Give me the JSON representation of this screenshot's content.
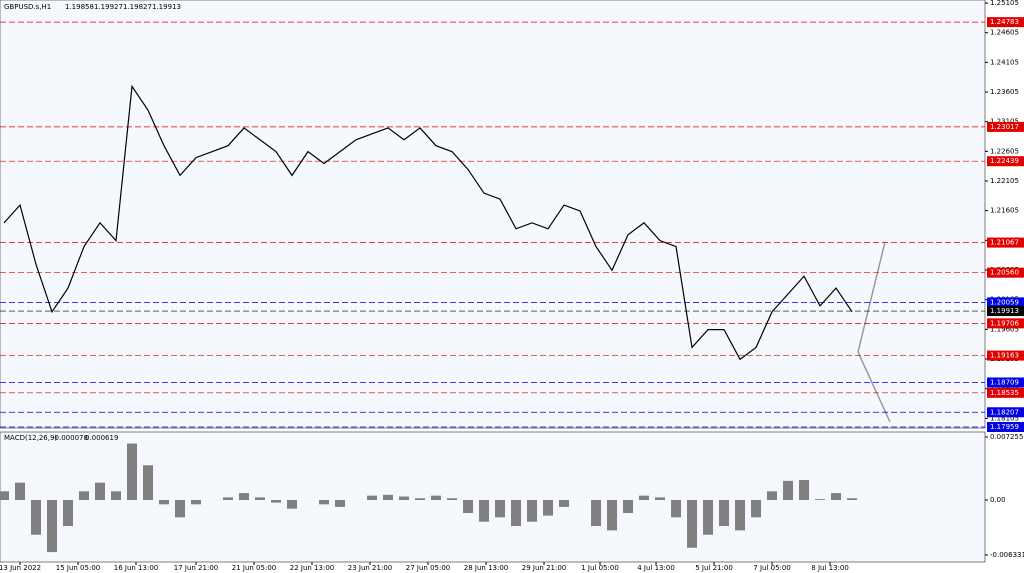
{
  "chart_data": [
    {
      "type": "line",
      "title": "GBPUSD.s,H1",
      "ohlc": [
        1.19858,
        1.19927,
        1.19827,
        1.19913
      ],
      "x": [
        0,
        1,
        2,
        3,
        4,
        5,
        6,
        7,
        8,
        9,
        10,
        11,
        12,
        13,
        14,
        15,
        16,
        17,
        18,
        19,
        20,
        21,
        22,
        23,
        24,
        25,
        26,
        27,
        28,
        29,
        30,
        31,
        32,
        33,
        34,
        35,
        36,
        37,
        38,
        39,
        40,
        41,
        42,
        43,
        44,
        45,
        46,
        47,
        48,
        49,
        50,
        51,
        52,
        53
      ],
      "values": [
        1.214,
        1.217,
        1.207,
        1.199,
        1.203,
        1.21,
        1.214,
        1.211,
        1.237,
        1.233,
        1.227,
        1.222,
        1.225,
        1.226,
        1.227,
        1.23,
        1.228,
        1.226,
        1.222,
        1.226,
        1.224,
        1.226,
        1.228,
        1.229,
        1.23,
        1.228,
        1.23,
        1.227,
        1.226,
        1.223,
        1.219,
        1.218,
        1.213,
        1.214,
        1.213,
        1.217,
        1.216,
        1.21,
        1.206,
        1.212,
        1.214,
        1.211,
        1.21,
        1.193,
        1.196,
        1.196,
        1.191,
        1.193,
        1.199,
        1.202,
        1.205,
        1.2,
        1.203,
        1.199
      ],
      "color": "#000000",
      "xlim": [
        -0.25,
        61.31
      ],
      "xticks": [
        {
          "value": 1,
          "label": "13 Jun 2022"
        },
        {
          "value": 4.625,
          "label": "15 Jun 05:00"
        },
        {
          "value": 8.25,
          "label": "16 Jun 13:00"
        },
        {
          "value": 12,
          "label": "17 Jun 21:00"
        },
        {
          "value": 15.625,
          "label": "21 Jun 05:00"
        },
        {
          "value": 19.25,
          "label": "22 Jun 13:00"
        },
        {
          "value": 22.875,
          "label": "23 Jun 21:00"
        },
        {
          "value": 26.5,
          "label": "27 Jun 05:00"
        },
        {
          "value": 30.125,
          "label": "28 Jun 13:00"
        },
        {
          "value": 33.75,
          "label": "29 Jun 21:00"
        },
        {
          "value": 37.25,
          "label": "1 Jul 05:00"
        },
        {
          "value": 40.75,
          "label": "4 Jul 13:00"
        },
        {
          "value": 44.375,
          "label": "5 Jul 21:00"
        },
        {
          "value": 48,
          "label": "7 Jul 05:00"
        },
        {
          "value": 51.625,
          "label": "8 Jul 13:00"
        }
      ],
      "ylim": [
        1.17942,
        1.25156
      ],
      "yticks": [
        1.18105,
        1.18605,
        1.19105,
        1.19605,
        1.20105,
        1.20605,
        1.21105,
        1.21605,
        1.22105,
        1.22605,
        1.23105,
        1.23605,
        1.24105,
        1.24605,
        1.25105
      ],
      "levels": [
        {
          "value": 1.24783,
          "color": "#e00000"
        },
        {
          "value": 1.23017,
          "color": "#e00000"
        },
        {
          "value": 1.22439,
          "color": "#e00000"
        },
        {
          "value": 1.21067,
          "color": "#e00000"
        },
        {
          "value": 1.2056,
          "label": "1.20560",
          "color": "#e00000"
        },
        {
          "value": 1.20059,
          "color": "#0000e0"
        },
        {
          "value": 1.19913,
          "color": "#000000"
        },
        {
          "value": 1.19706,
          "color": "#e00000"
        },
        {
          "value": 1.19163,
          "color": "#e00000"
        },
        {
          "value": 1.18709,
          "color": "#0000e0"
        },
        {
          "value": 1.18535,
          "color": "#e00000"
        },
        {
          "value": 1.18207,
          "color": "#0000e0"
        },
        {
          "value": 1.17959,
          "color": "#0000e0"
        }
      ]
    },
    {
      "type": "bar",
      "title": "MACD(12,26,9)",
      "current": [
        -7.8e-05,
        0.000619
      ],
      "x": [
        0,
        1,
        2,
        3,
        4,
        5,
        6,
        7,
        8,
        9,
        10,
        11,
        12,
        13,
        14,
        15,
        16,
        17,
        18,
        19,
        20,
        21,
        22,
        23,
        24,
        25,
        26,
        27,
        28,
        29,
        30,
        31,
        32,
        33,
        34,
        35,
        36,
        37,
        38,
        39,
        40,
        41,
        42,
        43,
        44,
        45,
        46,
        47,
        48,
        49,
        50,
        51,
        52,
        53
      ],
      "values": [
        0.001,
        0.002,
        -0.004,
        -0.006,
        -0.003,
        0.001,
        0.002,
        0.001,
        0.0065,
        0.004,
        -0.0005,
        -0.002,
        -0.0005,
        0,
        0.0003,
        0.0008,
        0.0003,
        -0.0003,
        -0.001,
        0,
        -0.0005,
        -0.0008,
        0,
        0.0005,
        0.0006,
        0.0004,
        0.0002,
        0.0005,
        0.0002,
        -0.0015,
        -0.0025,
        -0.002,
        -0.003,
        -0.0025,
        -0.0018,
        -0.0008,
        0,
        -0.003,
        -0.0035,
        -0.0015,
        0.0005,
        0.0003,
        -0.002,
        -0.0055,
        -0.004,
        -0.003,
        -0.0035,
        -0.002,
        0.001,
        0.0022,
        0.0023,
        0.0001,
        0.0008,
        0.0002
      ],
      "color": "#808080",
      "xlim": [
        -0.25,
        61.31
      ],
      "ylim": [
        -0.00714,
        0.00783
      ],
      "yticks": [
        -0.006331,
        {
          "value": 0,
          "label": "0.00"
        },
        0.007255
      ]
    }
  ]
}
